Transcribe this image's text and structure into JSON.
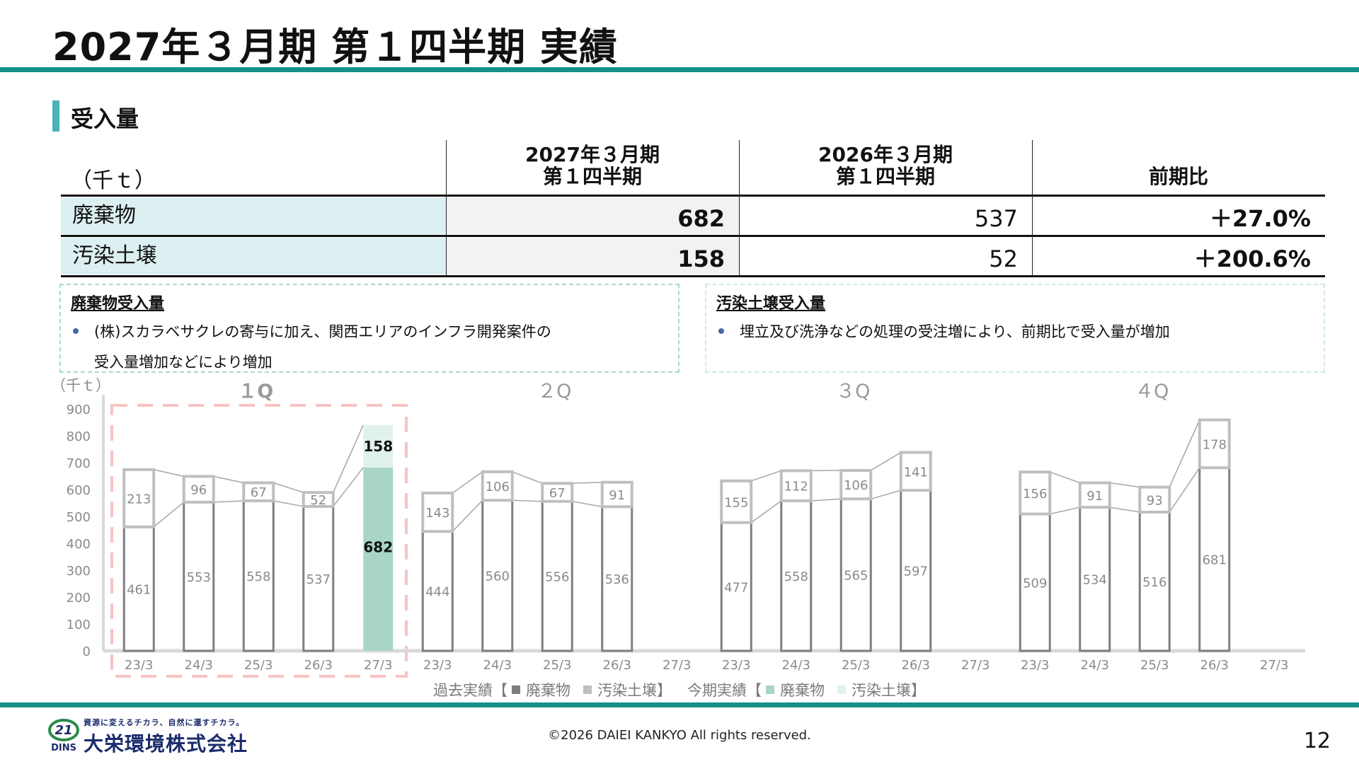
{
  "header": {
    "title": "2027年３月期 第１四半期 実績"
  },
  "section": {
    "label": "受入量"
  },
  "table": {
    "unit": "（千ｔ）",
    "col_current": [
      "2027年３月期",
      "第１四半期"
    ],
    "col_previous": [
      "2026年３月期",
      "第１四半期"
    ],
    "col_ratio": "前期比",
    "rows": [
      {
        "label": "廃棄物",
        "current": "682",
        "previous": "537",
        "ratio": "＋27.0%"
      },
      {
        "label": "汚染土壌",
        "current": "158",
        "previous": "52",
        "ratio": "＋200.6%"
      }
    ]
  },
  "notes": [
    {
      "title": "廃棄物受入量",
      "lines": [
        "(株)スカラベサクレの寄与に加え、関西エリアのインフラ開発案件の",
        "受入量増加などにより増加"
      ]
    },
    {
      "title": "汚染土壌受入量",
      "lines": [
        "埋立及び洗浄などの処理の受注増により、前期比で受入量が増加"
      ]
    }
  ],
  "chart_data": {
    "type": "bar",
    "stacked": true,
    "y_unit": "（千ｔ）",
    "ylim": [
      0,
      900
    ],
    "yticks": [
      "0",
      "100",
      "200",
      "300",
      "400",
      "500",
      "600",
      "700",
      "800",
      "900"
    ],
    "quarters": [
      "１Q",
      "２Q",
      "３Q",
      "４Q"
    ],
    "categories": [
      "23/3",
      "24/3",
      "25/3",
      "26/3",
      "27/3"
    ],
    "series": [
      {
        "name": "廃棄物",
        "group": "過去実績",
        "values": [
          [
            461,
            553,
            558,
            537,
            null
          ],
          [
            444,
            560,
            556,
            536,
            null
          ],
          [
            477,
            558,
            565,
            597,
            null
          ],
          [
            509,
            534,
            516,
            681,
            null
          ]
        ]
      },
      {
        "name": "汚染土壌",
        "group": "過去実績",
        "values": [
          [
            213,
            96,
            67,
            52,
            null
          ],
          [
            143,
            106,
            67,
            91,
            null
          ],
          [
            155,
            112,
            106,
            141,
            null
          ],
          [
            156,
            91,
            93,
            178,
            null
          ]
        ]
      },
      {
        "name": "廃棄物",
        "group": "今期実績",
        "values": [
          [
            null,
            null,
            null,
            null,
            682
          ],
          [
            null,
            null,
            null,
            null,
            null
          ],
          [
            null,
            null,
            null,
            null,
            null
          ],
          [
            null,
            null,
            null,
            null,
            null
          ]
        ]
      },
      {
        "name": "汚染土壌",
        "group": "今期実績",
        "values": [
          [
            null,
            null,
            null,
            null,
            158
          ],
          [
            null,
            null,
            null,
            null,
            null
          ],
          [
            null,
            null,
            null,
            null,
            null
          ],
          [
            null,
            null,
            null,
            null,
            null
          ]
        ]
      }
    ],
    "legend": {
      "past": "過去実績【",
      "past_waste": "廃棄物",
      "past_soil": "汚染土壌】",
      "current": "今期実績【",
      "current_waste": "廃棄物",
      "current_soil": "汚染土壌】"
    },
    "colors": {
      "past_waste": "#7f7f7f",
      "past_soil": "#bfbfbf",
      "current_waste": "#a8d5c6",
      "current_soil": "#e1f2ec",
      "highlight": "#f7c3c3"
    }
  },
  "footer": {
    "copyright": "©2026 DAIEI KANKYO All rights reserved.",
    "page": "12",
    "logo_tagline": "資源に変えるチカラ、自然に還すチカラ。",
    "logo_name": "大栄環境株式会社",
    "logo_mark_text": "21",
    "logo_mark_sub": "DINS"
  }
}
